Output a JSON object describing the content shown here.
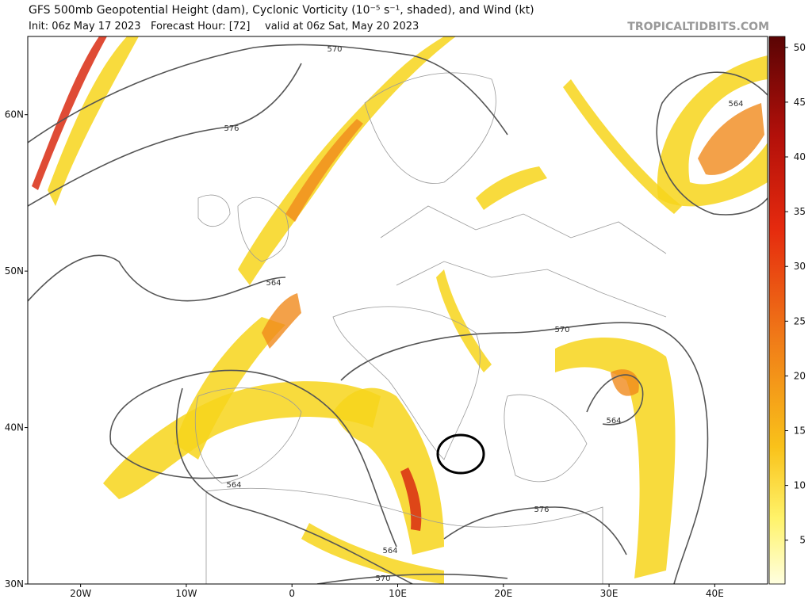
{
  "title": "GFS 500mb Geopotential Height (dam), Cyclonic Vorticity (10⁻⁵ s⁻¹, shaded), and Wind (kt)",
  "subtitle": {
    "init": "Init: 06z May 17 2023",
    "forecast_hour": "Forecast Hour: [72]",
    "valid": "valid at 06z Sat, May 20 2023"
  },
  "source": "TROPICALTIDBITS.COM",
  "map": {
    "xlim": [
      -25,
      45
    ],
    "ylim": [
      30,
      65
    ],
    "xticks": [
      {
        "value": -20,
        "label": "20W"
      },
      {
        "value": -10,
        "label": "10W"
      },
      0,
      {
        "value": 10,
        "label": "10E"
      },
      {
        "value": 20,
        "label": "20E"
      },
      {
        "value": 30,
        "label": "30E"
      },
      {
        "value": 40,
        "label": "40E"
      }
    ],
    "yticks": [
      {
        "value": 30,
        "label": "30N"
      },
      {
        "value": 40,
        "label": "40N"
      },
      {
        "value": 50,
        "label": "50N"
      },
      {
        "value": 60,
        "label": "60N"
      }
    ]
  },
  "colorbar": {
    "lim": [
      1,
      51
    ],
    "ticks": [
      5,
      10,
      15,
      20,
      25,
      30,
      35,
      40,
      45,
      50
    ]
  },
  "contour_labels": [
    570,
    576,
    564,
    564,
    570,
    564,
    564,
    576,
    564,
    570
  ]
}
